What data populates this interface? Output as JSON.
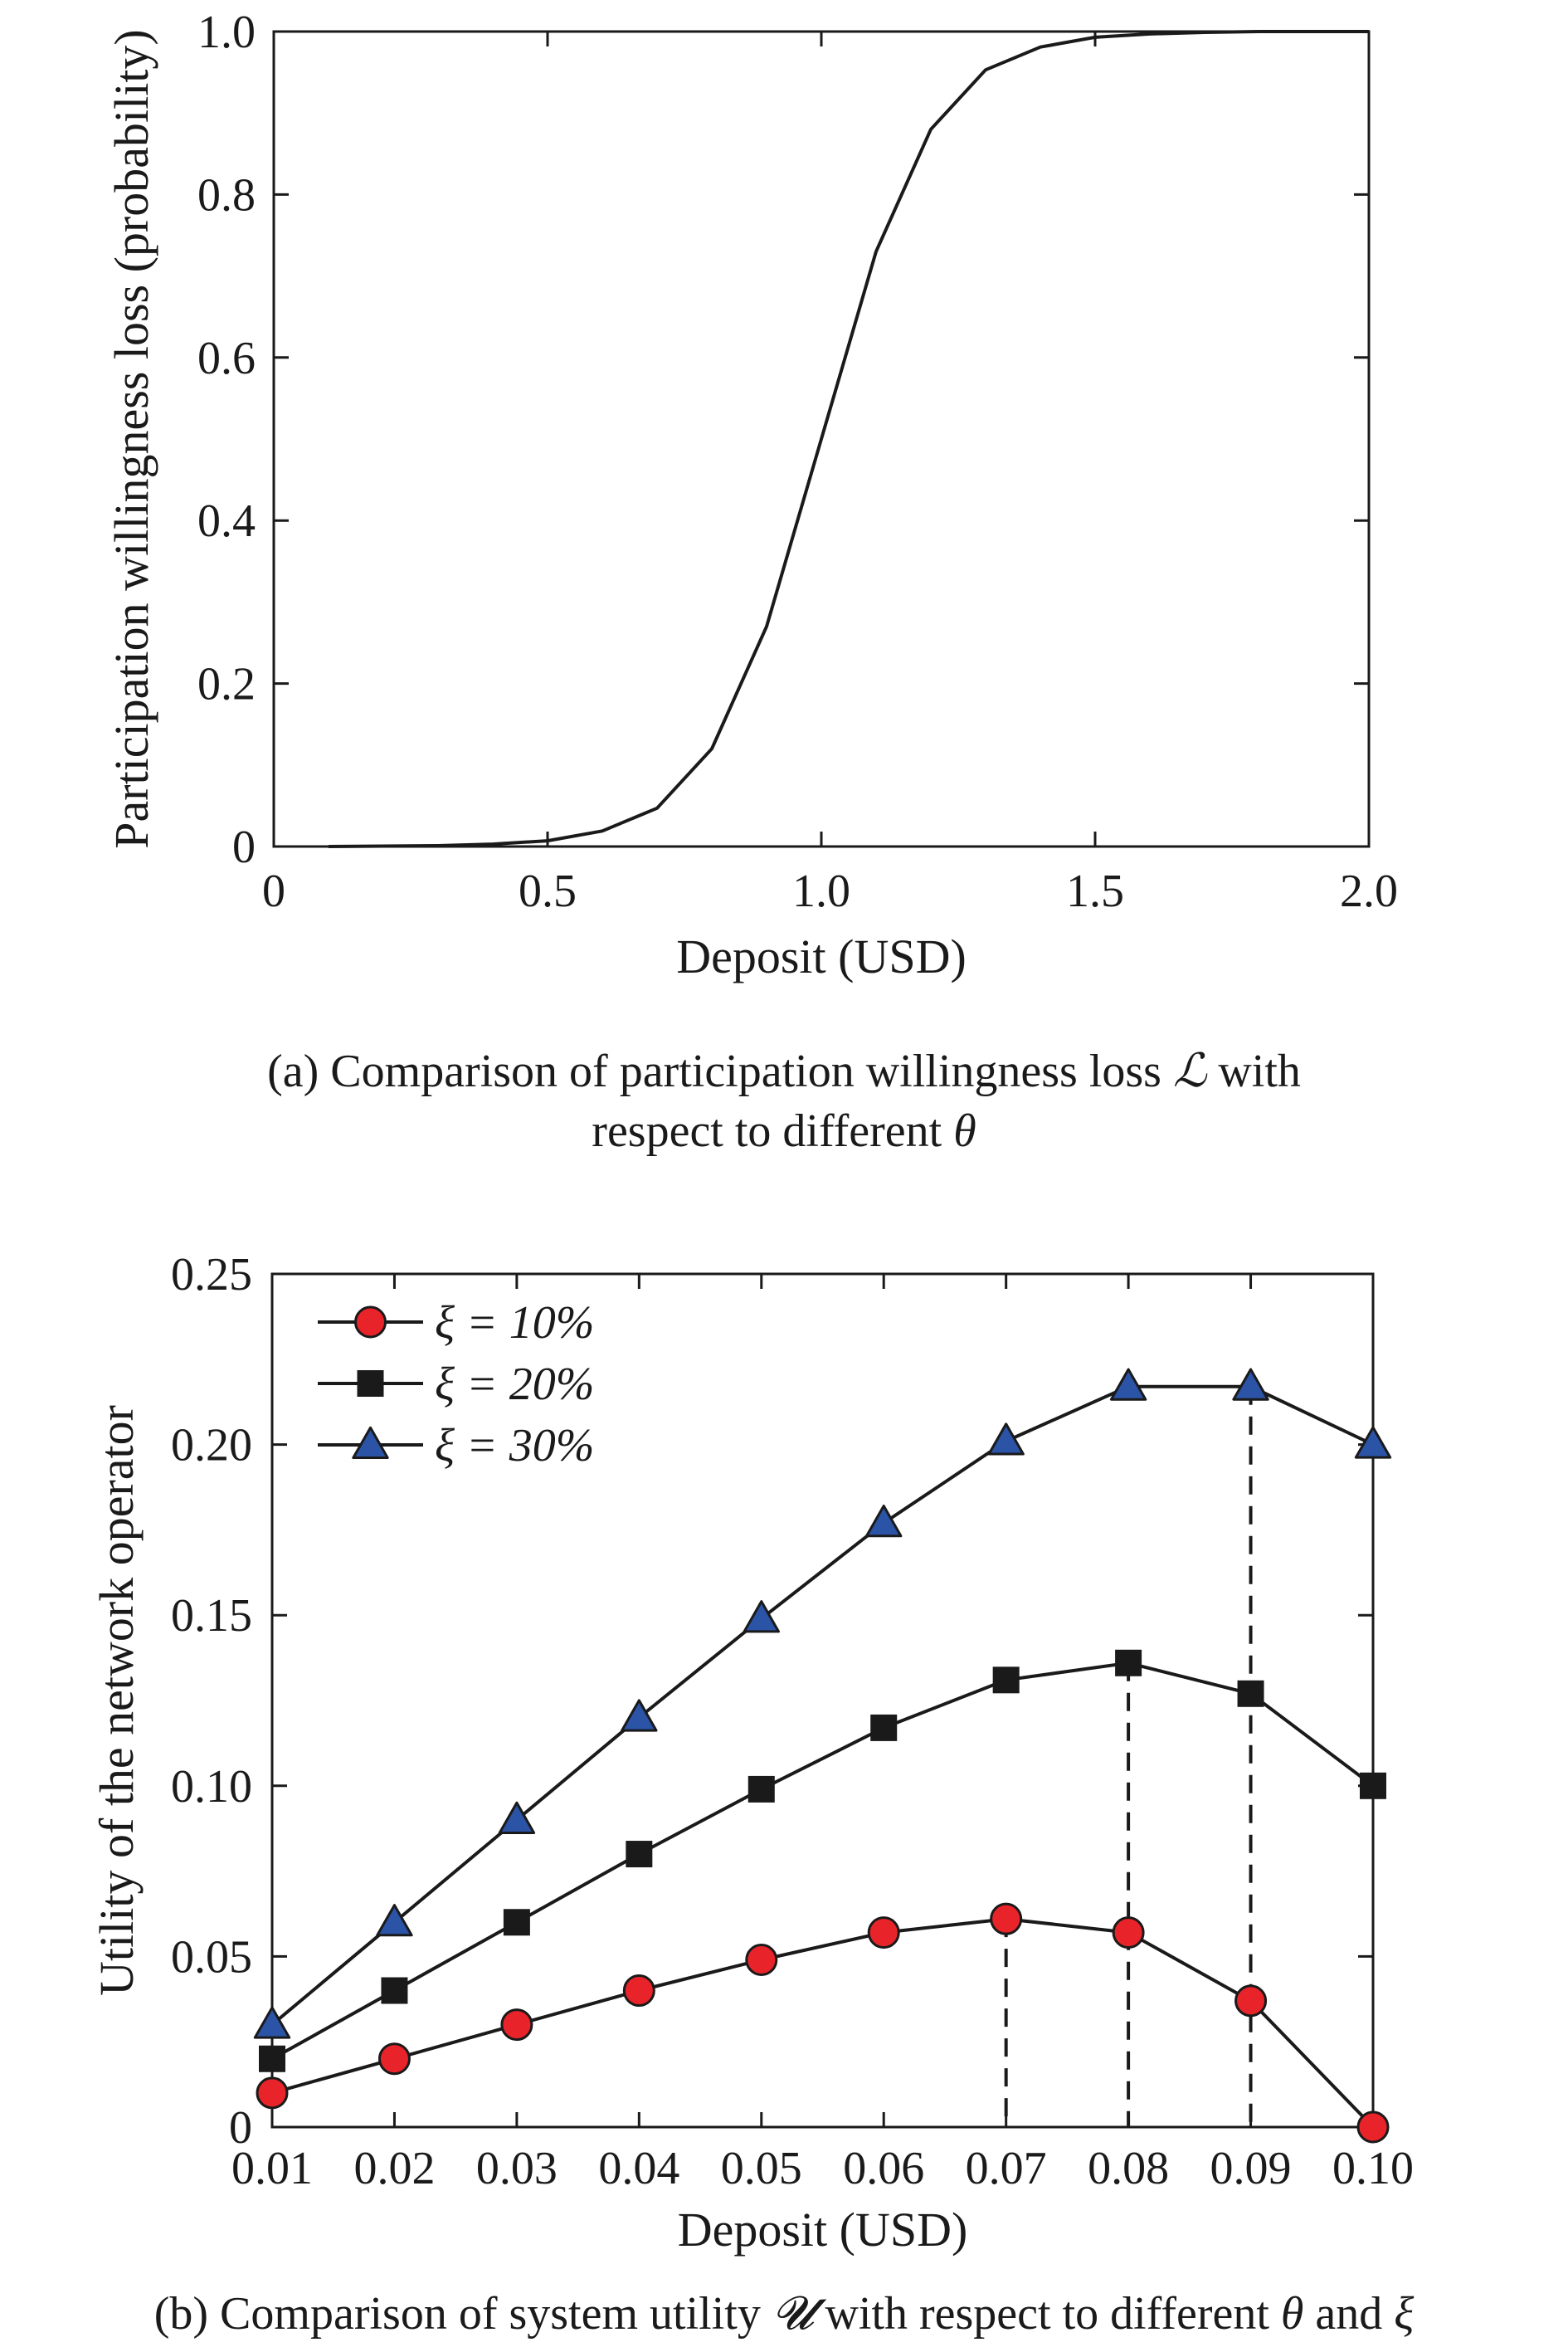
{
  "captions": {
    "a_pre": "(a) Comparison of participation willingness loss ",
    "a_sym": "ℒ",
    "a_mid": " with",
    "a_line2_pre": "respect to different ",
    "a_theta": "θ",
    "b_pre": "(b) Comparison of system utility ",
    "b_sym": "𝓤",
    "b_mid": " with respect to different ",
    "b_theta": "θ",
    "b_and": " and ",
    "b_xi": "ξ"
  },
  "chart_data": [
    {
      "type": "line",
      "xlabel": "Deposit (USD)",
      "ylabel": "Participation willingness loss (probability)",
      "xlim": [
        0,
        2.0
      ],
      "ylim": [
        0,
        1.0
      ],
      "xticks": [
        "0",
        "0.5",
        "1.0",
        "1.5",
        "2.0"
      ],
      "yticks": [
        "0",
        "0.2",
        "0.4",
        "0.6",
        "0.8",
        "1.0"
      ],
      "grid": false,
      "series": [
        {
          "color": "#1a1a1a",
          "x": [
            0.1,
            0.2,
            0.3,
            0.4,
            0.5,
            0.6,
            0.7,
            0.8,
            0.9,
            1.0,
            1.1,
            1.2,
            1.3,
            1.4,
            1.5,
            1.6,
            1.7,
            1.8,
            1.9,
            2.0
          ],
          "y": [
            0.0,
            0.0005,
            0.001,
            0.003,
            0.007,
            0.019,
            0.047,
            0.12,
            0.27,
            0.5,
            0.73,
            0.88,
            0.953,
            0.981,
            0.993,
            0.997,
            0.999,
            1.0,
            1.0,
            1.0
          ]
        }
      ]
    },
    {
      "type": "line",
      "xlabel": "Deposit (USD)",
      "ylabel": "Utility of the network operator",
      "xlim": [
        0.01,
        0.1
      ],
      "ylim": [
        0,
        0.25
      ],
      "categories": [
        "0.01",
        "0.02",
        "0.03",
        "0.04",
        "0.05",
        "0.06",
        "0.07",
        "0.08",
        "0.09",
        "0.10"
      ],
      "xvalues": [
        0.01,
        0.02,
        0.03,
        0.04,
        0.05,
        0.06,
        0.07,
        0.08,
        0.09,
        0.1
      ],
      "yticks": [
        "0",
        "0.05",
        "0.10",
        "0.15",
        "0.20",
        "0.25"
      ],
      "grid": false,
      "legend_position": "top-left",
      "series": [
        {
          "name": "ξ = 10%",
          "marker": "circle",
          "color": "#e8242a",
          "values": [
            0.01,
            0.02,
            0.03,
            0.04,
            0.049,
            0.057,
            0.061,
            0.057,
            0.037,
            0.0
          ]
        },
        {
          "name": "ξ = 20%",
          "marker": "square",
          "color": "#1a1a1a",
          "values": [
            0.02,
            0.04,
            0.06,
            0.08,
            0.099,
            0.117,
            0.131,
            0.136,
            0.127,
            0.1
          ]
        },
        {
          "name": "ξ = 30%",
          "marker": "triangle",
          "color": "#2b53a6",
          "values": [
            0.03,
            0.06,
            0.09,
            0.12,
            0.149,
            0.177,
            0.201,
            0.217,
            0.217,
            0.2
          ]
        }
      ],
      "annotations": {
        "dashed_drop_lines_at_x": [
          0.07,
          0.08,
          0.09
        ]
      }
    }
  ]
}
